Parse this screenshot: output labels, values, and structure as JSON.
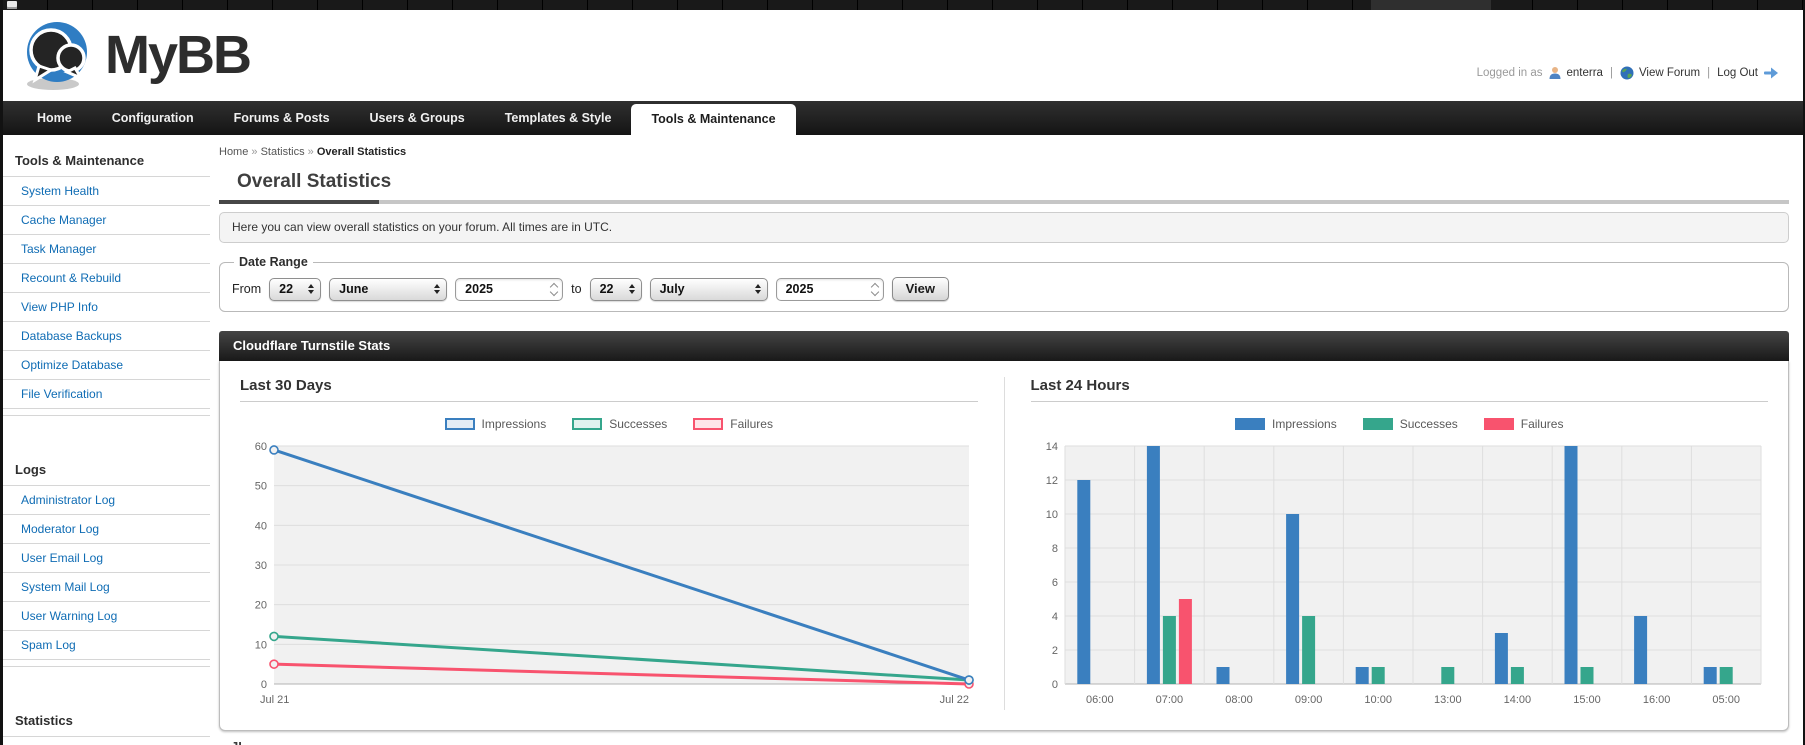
{
  "header": {
    "logo_text": "MyBB",
    "user_bar": {
      "logged_in_as": "Logged in as",
      "username": "enterra",
      "separator": "|",
      "view_forum": "View Forum",
      "log_out": "Log Out"
    }
  },
  "nav": {
    "tabs": [
      {
        "label": "Home",
        "active": false
      },
      {
        "label": "Configuration",
        "active": false
      },
      {
        "label": "Forums & Posts",
        "active": false
      },
      {
        "label": "Users & Groups",
        "active": false
      },
      {
        "label": "Templates & Style",
        "active": false
      },
      {
        "label": "Tools & Maintenance",
        "active": true
      }
    ]
  },
  "sidebar": {
    "groups": [
      {
        "title": "Tools & Maintenance",
        "active": false,
        "items": [
          "System Health",
          "Cache Manager",
          "Task Manager",
          "Recount & Rebuild",
          "View PHP Info",
          "Database Backups",
          "Optimize Database",
          "File Verification"
        ]
      },
      {
        "title": "Logs",
        "active": false,
        "items": [
          "Administrator Log",
          "Moderator Log",
          "User Email Log",
          "System Mail Log",
          "User Warning Log",
          "Spam Log"
        ]
      },
      {
        "title": "Statistics",
        "active": true,
        "items": []
      }
    ]
  },
  "breadcrumb": {
    "items": [
      "Home",
      "Statistics",
      "Overall Statistics"
    ],
    "separator": "»"
  },
  "page": {
    "title": "Overall Statistics",
    "description": "Here you can view overall statistics on your forum. All times are in UTC."
  },
  "date_range": {
    "legend": "Date Range",
    "from_label": "From",
    "to_label": "to",
    "from_day": "22",
    "from_month": "June",
    "from_year": "2025",
    "to_day": "22",
    "to_month": "July",
    "to_year": "2025",
    "view_button": "View"
  },
  "panel": {
    "title": "Cloudflare Turnstile Stats"
  },
  "colors": {
    "link": "#0f6cb4",
    "impressions": "#3a7fbf",
    "successes": "#35a68c",
    "failures": "#f8536e"
  },
  "chart_data": [
    {
      "type": "line",
      "title": "Last 30 Days",
      "x": [
        "Jul 21",
        "Jul 22"
      ],
      "series": [
        {
          "name": "Impressions",
          "values": [
            59,
            1
          ],
          "color": "#3a7fbf"
        },
        {
          "name": "Successes",
          "values": [
            12,
            1
          ],
          "color": "#35a68c"
        },
        {
          "name": "Failures",
          "values": [
            5,
            0
          ],
          "color": "#f8536e"
        }
      ],
      "ylim": [
        0,
        60
      ],
      "ytick_step": 10,
      "xlabel": "",
      "ylabel": "",
      "grid": "horizontal",
      "legend_position": "top"
    },
    {
      "type": "bar",
      "title": "Last 24 Hours",
      "categories": [
        "06:00",
        "07:00",
        "08:00",
        "09:00",
        "10:00",
        "13:00",
        "14:00",
        "15:00",
        "16:00",
        "05:00"
      ],
      "series": [
        {
          "name": "Impressions",
          "values": [
            12,
            14,
            1,
            10,
            1,
            0,
            3,
            14,
            4,
            1
          ],
          "color": "#3a7fbf"
        },
        {
          "name": "Successes",
          "values": [
            0,
            4,
            0,
            4,
            1,
            1,
            1,
            1,
            0,
            1
          ],
          "color": "#35a68c"
        },
        {
          "name": "Failures",
          "values": [
            0,
            5,
            0,
            0,
            0,
            0,
            0,
            0,
            0,
            0
          ],
          "color": "#f8536e"
        }
      ],
      "ylim": [
        0,
        14
      ],
      "ytick_step": 2,
      "xlabel": "",
      "ylabel": "",
      "grid": "both",
      "legend_position": "top"
    }
  ]
}
